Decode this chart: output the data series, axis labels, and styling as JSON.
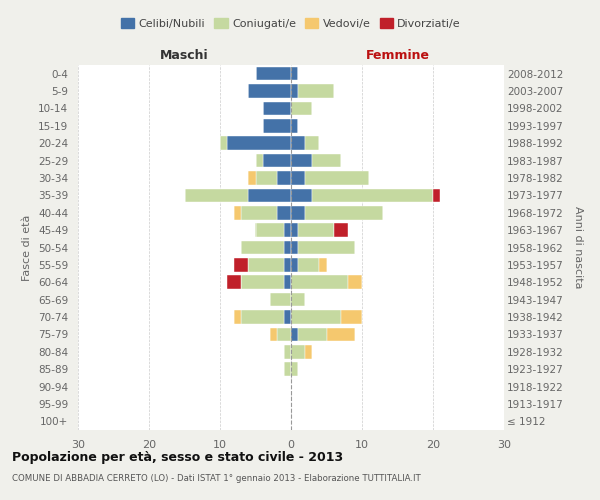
{
  "age_groups": [
    "100+",
    "95-99",
    "90-94",
    "85-89",
    "80-84",
    "75-79",
    "70-74",
    "65-69",
    "60-64",
    "55-59",
    "50-54",
    "45-49",
    "40-44",
    "35-39",
    "30-34",
    "25-29",
    "20-24",
    "15-19",
    "10-14",
    "5-9",
    "0-4"
  ],
  "birth_years": [
    "≤ 1912",
    "1913-1917",
    "1918-1922",
    "1923-1927",
    "1928-1932",
    "1933-1937",
    "1938-1942",
    "1943-1947",
    "1948-1952",
    "1953-1957",
    "1958-1962",
    "1963-1967",
    "1968-1972",
    "1973-1977",
    "1978-1982",
    "1983-1987",
    "1988-1992",
    "1993-1997",
    "1998-2002",
    "2003-2007",
    "2008-2012"
  ],
  "male": {
    "celibi": [
      0,
      0,
      0,
      0,
      0,
      0,
      1,
      0,
      1,
      1,
      1,
      1,
      2,
      6,
      2,
      4,
      9,
      4,
      4,
      6,
      5
    ],
    "coniugati": [
      0,
      0,
      0,
      1,
      1,
      2,
      6,
      3,
      6,
      5,
      6,
      4,
      5,
      9,
      3,
      1,
      1,
      0,
      0,
      0,
      0
    ],
    "vedovi": [
      0,
      0,
      0,
      0,
      0,
      1,
      1,
      0,
      0,
      0,
      0,
      0,
      1,
      0,
      1,
      0,
      0,
      0,
      0,
      0,
      0
    ],
    "divorziati": [
      0,
      0,
      0,
      0,
      0,
      0,
      0,
      0,
      2,
      2,
      0,
      0,
      0,
      0,
      0,
      0,
      0,
      0,
      0,
      0,
      0
    ]
  },
  "female": {
    "nubili": [
      0,
      0,
      0,
      0,
      0,
      1,
      0,
      0,
      0,
      1,
      1,
      1,
      2,
      3,
      2,
      3,
      2,
      1,
      0,
      1,
      1
    ],
    "coniugate": [
      0,
      0,
      0,
      1,
      2,
      4,
      7,
      2,
      8,
      3,
      8,
      5,
      11,
      17,
      9,
      4,
      2,
      0,
      3,
      5,
      0
    ],
    "vedove": [
      0,
      0,
      0,
      0,
      1,
      4,
      3,
      0,
      2,
      1,
      0,
      0,
      0,
      0,
      0,
      0,
      0,
      0,
      0,
      0,
      0
    ],
    "divorziate": [
      0,
      0,
      0,
      0,
      0,
      0,
      0,
      0,
      0,
      0,
      0,
      2,
      0,
      1,
      0,
      0,
      0,
      0,
      0,
      0,
      0
    ]
  },
  "colors": {
    "celibi_nubili": "#4472a8",
    "coniugati": "#c5d9a0",
    "vedovi": "#f5c86e",
    "divorziati": "#c0202a"
  },
  "xlim": 30,
  "title": "Popolazione per età, sesso e stato civile - 2013",
  "subtitle": "COMUNE DI ABBADIA CERRETO (LO) - Dati ISTAT 1° gennaio 2013 - Elaborazione TUTTITALIA.IT",
  "ylabel_left": "Fasce di età",
  "ylabel_right": "Anni di nascita",
  "xlabel_left": "Maschi",
  "xlabel_right": "Femmine",
  "bg_color": "#f0f0eb",
  "plot_bg_color": "#ffffff"
}
